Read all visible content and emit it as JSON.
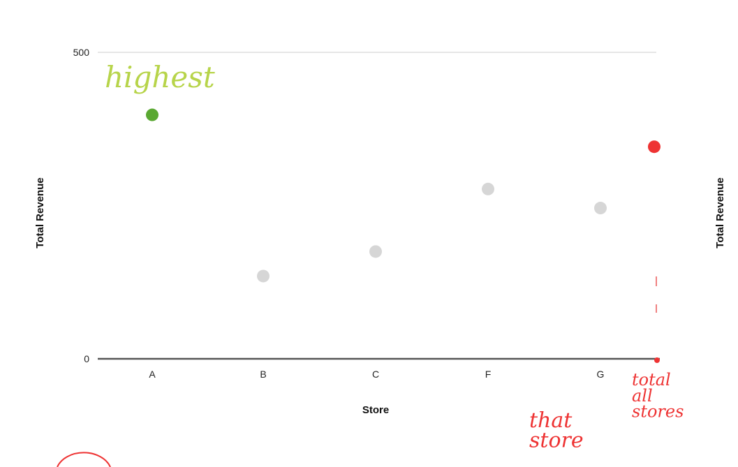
{
  "chart_data": {
    "type": "scatter",
    "categories": [
      "A",
      "B",
      "C",
      "F",
      "G",
      ""
    ],
    "series": [
      {
        "values": [
          398,
          135,
          175,
          277,
          246,
          346
        ],
        "point_colors": [
          "#5aa832",
          "#d6d6d6",
          "#d6d6d6",
          "#d6d6d6",
          "#d6d6d6",
          "#ee3333"
        ]
      }
    ],
    "xlabel": "Store",
    "ylabel": "Total Revenue",
    "ylabel_right": "Total Revenue",
    "ylim": [
      0,
      500
    ],
    "yticks": [
      {
        "value": 500,
        "label": "500"
      },
      {
        "value": 0,
        "label": "0"
      }
    ],
    "grid": true,
    "annotations": [
      {
        "text": "highest",
        "color": "#b7d44a",
        "near": "A"
      },
      {
        "text": "that store",
        "color": "#ee3333",
        "near": "G"
      },
      {
        "text": "total all stores",
        "color": "#ee3333",
        "near": "last column"
      }
    ]
  }
}
